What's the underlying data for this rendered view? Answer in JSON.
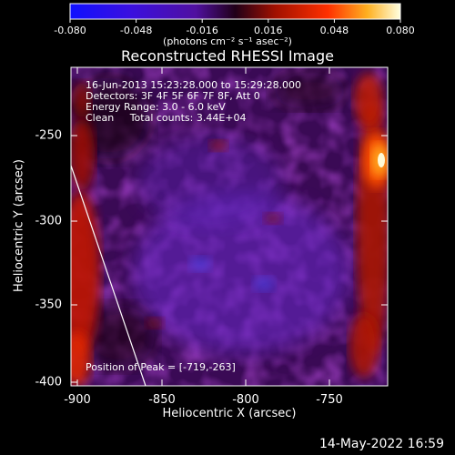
{
  "colorbar": {
    "ticks": [
      "-0.080",
      "-0.048",
      "-0.016",
      "0.016",
      "0.048",
      "0.080"
    ],
    "units": "(photons cm⁻² s⁻¹ asec⁻²)"
  },
  "title": "Reconstructed RHESSI Image",
  "info": {
    "time": "16-Jun-2013 15:23:28.000 to 15:29:28.000",
    "detectors": "Detectors: 3F 4F 5F 6F 7F 8F, Att 0",
    "energy": "Energy Range: 3.0 - 6.0 keV",
    "clean": "Clean     Total counts: 3.44E+04"
  },
  "peak": "Position of Peak = [-719,-263]",
  "axes": {
    "xlabel": "Heliocentric X (arcsec)",
    "ylabel": "Heliocentric Y (arcsec)",
    "xticks": [
      "-900",
      "-850",
      "-800",
      "-750"
    ],
    "yticks": [
      "-250",
      "-300",
      "-350",
      "-400"
    ]
  },
  "footer": "14-May-2022 16:59"
}
